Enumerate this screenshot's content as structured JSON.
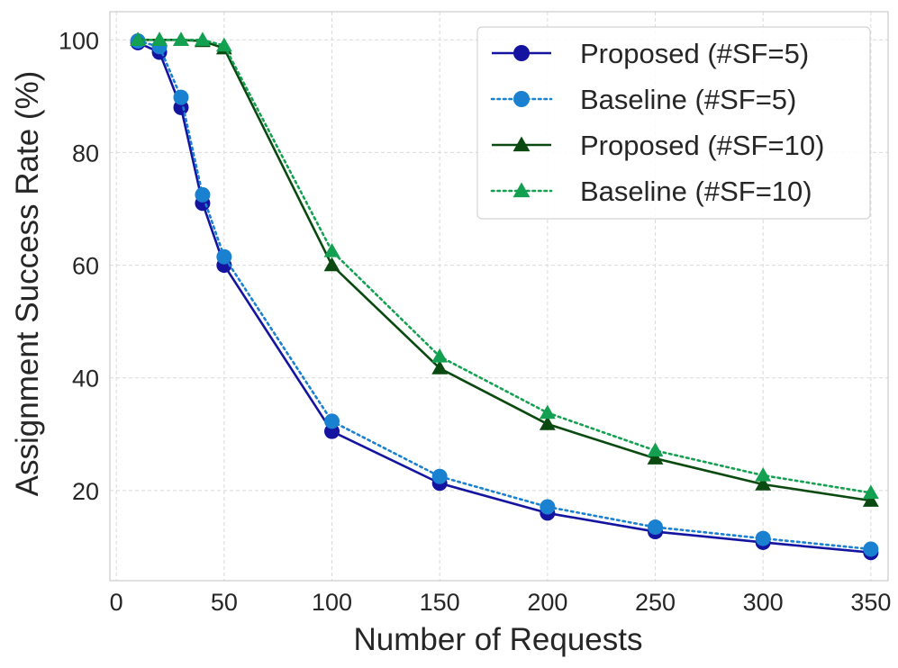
{
  "chart_data": {
    "type": "line",
    "title": "",
    "xlabel": "Number of Requests",
    "ylabel": "Assignment Success Rate (%)",
    "xlim": [
      -3,
      358
    ],
    "ylim": [
      4,
      105
    ],
    "xticks": [
      0,
      50,
      100,
      150,
      200,
      250,
      300,
      350
    ],
    "yticks": [
      20,
      40,
      60,
      80,
      100
    ],
    "xtick_labels": [
      "0",
      "50",
      "100",
      "150",
      "200",
      "250",
      "300",
      "350"
    ],
    "ytick_labels": [
      "20",
      "40",
      "60",
      "80",
      "100"
    ],
    "grid": true,
    "legend_position": "top-right",
    "series": [
      {
        "name": "Proposed (#SF=5)",
        "x": [
          10,
          20,
          30,
          40,
          50,
          100,
          150,
          200,
          250,
          300,
          350
        ],
        "values": [
          99.5,
          97.8,
          88.0,
          71.0,
          60.0,
          30.5,
          21.3,
          16.0,
          12.7,
          10.8,
          9.0
        ],
        "color": "#1414a0",
        "line_style": "solid",
        "marker": "circle"
      },
      {
        "name": "Baseline (#SF=5)",
        "x": [
          10,
          20,
          30,
          40,
          50,
          100,
          150,
          200,
          250,
          300,
          350
        ],
        "values": [
          99.8,
          98.8,
          89.8,
          72.5,
          61.5,
          32.3,
          22.5,
          17.1,
          13.5,
          11.5,
          9.6
        ],
        "color": "#1a80d0",
        "line_style": "dotted",
        "marker": "circle"
      },
      {
        "name": "Proposed (#SF=10)",
        "x": [
          10,
          20,
          30,
          40,
          50,
          100,
          150,
          200,
          250,
          300,
          350
        ],
        "values": [
          100,
          100,
          100,
          99.8,
          98.5,
          60.0,
          41.7,
          31.8,
          25.7,
          21.1,
          18.2
        ],
        "color": "#0a4a10",
        "line_style": "solid",
        "marker": "triangle"
      },
      {
        "name": "Baseline (#SF=10)",
        "x": [
          10,
          20,
          30,
          40,
          50,
          100,
          150,
          200,
          250,
          300,
          350
        ],
        "values": [
          100,
          100,
          100,
          100,
          99.0,
          62.5,
          43.8,
          33.8,
          27.1,
          22.7,
          19.6
        ],
        "color": "#13a050",
        "line_style": "dotted",
        "marker": "triangle"
      }
    ]
  }
}
